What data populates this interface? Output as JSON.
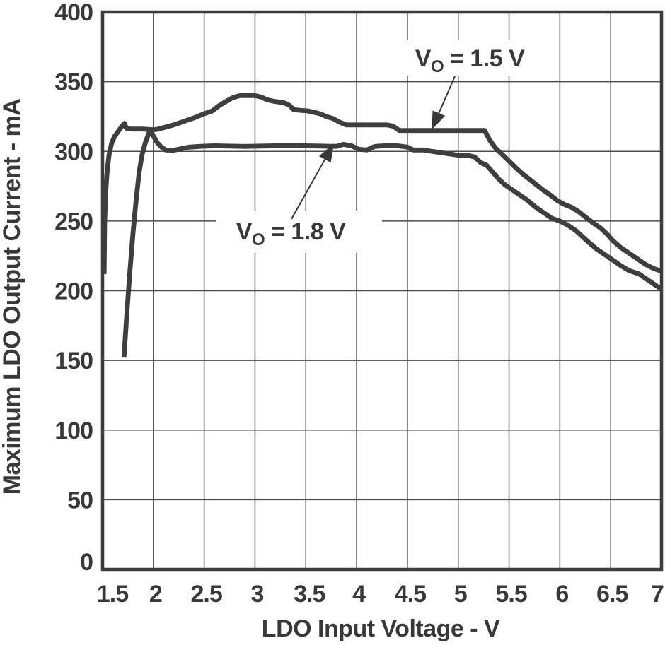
{
  "page": {
    "background_color": "#ffffff",
    "description": "Datasheet line graph: Maximum LDO Output Current vs LDO Input Voltage for two output voltage settings"
  },
  "chart_data": {
    "type": "line",
    "title": "",
    "xlabel": "LDO Input Voltage - V",
    "ylabel": "Maximum LDO Output Current - mA",
    "xlim": [
      1.5,
      7
    ],
    "ylim": [
      0,
      400
    ],
    "grid": true,
    "legend": "none (curves labeled by arrowed annotations)",
    "xtick_values": [
      1.5,
      2,
      2.5,
      3,
      3.5,
      4,
      4.5,
      5,
      5.5,
      6,
      6.5,
      7
    ],
    "xtick_labels": [
      "1.5",
      "2",
      "2.5",
      "3",
      "3.5",
      "4",
      "4.5",
      "5",
      "5.5",
      "6",
      "6.5",
      "7"
    ],
    "ytick_values": [
      0,
      50,
      100,
      150,
      200,
      250,
      300,
      350,
      400
    ],
    "ytick_labels": [
      "0",
      "50",
      "100",
      "150",
      "200",
      "250",
      "300",
      "350",
      "400"
    ],
    "colors": {
      "curve": "#3e3e3e",
      "grid": "#4a4a4a",
      "frame": "#3c3c3c",
      "text": "#383838",
      "annotation_bg": "#ffffff"
    },
    "series": [
      {
        "id": "vo-1p5",
        "name": "VO = 1.5 V",
        "points": [
          [
            1.515,
            212
          ],
          [
            1.52,
            248
          ],
          [
            1.53,
            270
          ],
          [
            1.545,
            286
          ],
          [
            1.565,
            298
          ],
          [
            1.59,
            306
          ],
          [
            1.62,
            311
          ],
          [
            1.66,
            315
          ],
          [
            1.69,
            318
          ],
          [
            1.715,
            320
          ],
          [
            1.735,
            316.5
          ],
          [
            1.78,
            316
          ],
          [
            1.9,
            316
          ],
          [
            2.0,
            315.5
          ],
          [
            2.05,
            316
          ],
          [
            2.1,
            317
          ],
          [
            2.2,
            319
          ],
          [
            2.3,
            321.5
          ],
          [
            2.4,
            324
          ],
          [
            2.5,
            327
          ],
          [
            2.58,
            329
          ],
          [
            2.65,
            333
          ],
          [
            2.72,
            336
          ],
          [
            2.78,
            338.5
          ],
          [
            2.85,
            340
          ],
          [
            3.0,
            340
          ],
          [
            3.06,
            339
          ],
          [
            3.12,
            337
          ],
          [
            3.18,
            336
          ],
          [
            3.28,
            335
          ],
          [
            3.34,
            333
          ],
          [
            3.38,
            330
          ],
          [
            3.44,
            329.5
          ],
          [
            3.52,
            329
          ],
          [
            3.58,
            328
          ],
          [
            3.64,
            327
          ],
          [
            3.7,
            325
          ],
          [
            3.77,
            323.5
          ],
          [
            3.83,
            321
          ],
          [
            3.9,
            319
          ],
          [
            4.0,
            319
          ],
          [
            4.15,
            319
          ],
          [
            4.3,
            319
          ],
          [
            4.36,
            318
          ],
          [
            4.42,
            315
          ],
          [
            4.6,
            315
          ],
          [
            4.8,
            315
          ],
          [
            5.0,
            315
          ],
          [
            5.12,
            315
          ],
          [
            5.26,
            315
          ],
          [
            5.31,
            308
          ],
          [
            5.37,
            302
          ],
          [
            5.43,
            298
          ],
          [
            5.5,
            293
          ],
          [
            5.57,
            288
          ],
          [
            5.63,
            284
          ],
          [
            5.7,
            280
          ],
          [
            5.77,
            276
          ],
          [
            5.84,
            272
          ],
          [
            5.9,
            269
          ],
          [
            5.97,
            265
          ],
          [
            6.04,
            262
          ],
          [
            6.11,
            260
          ],
          [
            6.18,
            257
          ],
          [
            6.25,
            253
          ],
          [
            6.32,
            249
          ],
          [
            6.4,
            245
          ],
          [
            6.46,
            241
          ],
          [
            6.52,
            236
          ],
          [
            6.6,
            231
          ],
          [
            6.68,
            227
          ],
          [
            6.76,
            223
          ],
          [
            6.84,
            219
          ],
          [
            6.92,
            216
          ],
          [
            7.0,
            214
          ]
        ]
      },
      {
        "id": "vo-1p8",
        "name": "VO = 1.8 V",
        "points": [
          [
            1.71,
            152
          ],
          [
            1.74,
            185
          ],
          [
            1.77,
            215
          ],
          [
            1.8,
            242
          ],
          [
            1.83,
            265
          ],
          [
            1.86,
            285
          ],
          [
            1.89,
            298
          ],
          [
            1.92,
            306
          ],
          [
            1.95,
            312
          ],
          [
            1.97,
            315.5
          ],
          [
            2.0,
            311
          ],
          [
            2.04,
            306
          ],
          [
            2.08,
            303
          ],
          [
            2.12,
            301
          ],
          [
            2.2,
            300.8
          ],
          [
            2.28,
            302
          ],
          [
            2.35,
            303
          ],
          [
            2.45,
            303.5
          ],
          [
            2.6,
            304
          ],
          [
            2.9,
            303.5
          ],
          [
            3.2,
            304
          ],
          [
            3.5,
            304
          ],
          [
            3.8,
            303.5
          ],
          [
            3.87,
            305
          ],
          [
            3.95,
            304
          ],
          [
            4.02,
            301.5
          ],
          [
            4.1,
            301
          ],
          [
            4.18,
            303.5
          ],
          [
            4.28,
            304
          ],
          [
            4.4,
            304
          ],
          [
            4.5,
            303
          ],
          [
            4.56,
            301
          ],
          [
            4.66,
            301
          ],
          [
            4.74,
            300
          ],
          [
            4.84,
            299
          ],
          [
            4.93,
            298
          ],
          [
            5.02,
            297
          ],
          [
            5.1,
            297
          ],
          [
            5.16,
            296
          ],
          [
            5.22,
            292
          ],
          [
            5.28,
            290
          ],
          [
            5.34,
            285
          ],
          [
            5.4,
            280
          ],
          [
            5.46,
            276
          ],
          [
            5.54,
            272
          ],
          [
            5.6,
            269
          ],
          [
            5.68,
            265
          ],
          [
            5.76,
            260
          ],
          [
            5.84,
            256
          ],
          [
            5.92,
            252
          ],
          [
            6.0,
            250
          ],
          [
            6.08,
            247
          ],
          [
            6.16,
            243
          ],
          [
            6.22,
            239
          ],
          [
            6.28,
            235
          ],
          [
            6.36,
            230
          ],
          [
            6.44,
            226
          ],
          [
            6.52,
            222
          ],
          [
            6.6,
            218
          ],
          [
            6.68,
            214.5
          ],
          [
            6.78,
            212
          ],
          [
            6.86,
            208
          ],
          [
            6.94,
            204
          ],
          [
            7.0,
            201
          ]
        ]
      }
    ],
    "annotations": [
      {
        "id": "vo-1p5",
        "pre": "V",
        "sub": "O",
        "post": " = 1.5 V",
        "full_text": "VO = 1.5 V",
        "points_to_series": "VO = 1.5 V"
      },
      {
        "id": "vo-1p8",
        "pre": "V",
        "sub": "O",
        "post": " = 1.8 V",
        "full_text": "VO = 1.8 V",
        "points_to_series": "VO = 1.8 V"
      }
    ]
  }
}
